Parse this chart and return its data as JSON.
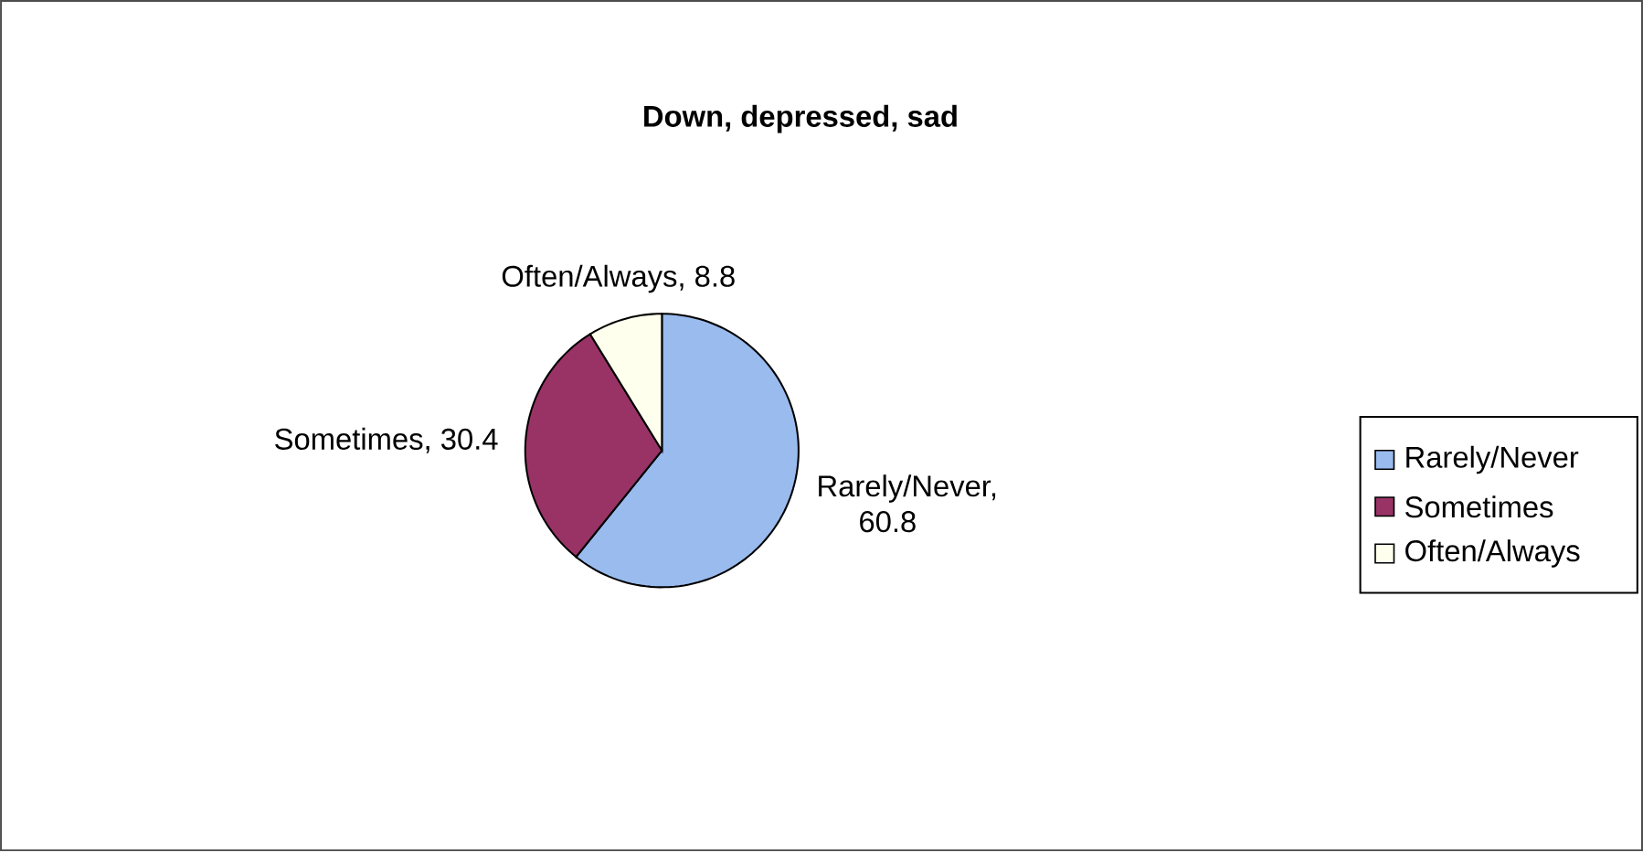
{
  "chart_data": {
    "type": "pie",
    "title": "Down, depressed, sad",
    "categories": [
      "Rarely/Never",
      "Sometimes",
      "Often/Always"
    ],
    "values": [
      60.8,
      30.4,
      8.8
    ],
    "colors": [
      "#99bbee",
      "#993366",
      "#ffffee"
    ],
    "value_labels": [
      "Rarely/Never, 60.8",
      "Sometimes, 30.4",
      "Often/Always, 8.8"
    ],
    "legend": "right"
  }
}
